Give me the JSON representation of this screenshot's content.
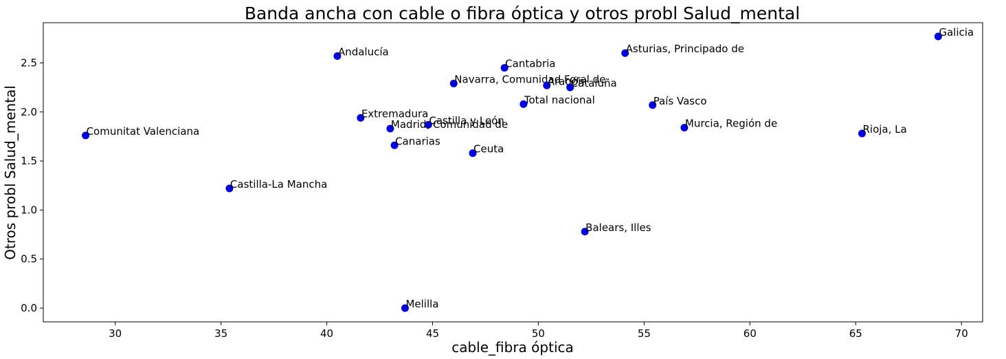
{
  "chart_data": {
    "type": "scatter",
    "title": "Banda ancha con cable o fibra óptica y otros probl Salud_mental",
    "xlabel": "cable_fibra óptica",
    "ylabel": "Otros probl Salud_mental",
    "xlim": [
      26.6,
      71.0
    ],
    "ylim": [
      -0.14,
      2.91
    ],
    "xticks": [
      30,
      35,
      40,
      45,
      50,
      55,
      60,
      65,
      70
    ],
    "yticks": [
      0.0,
      0.5,
      1.0,
      1.5,
      2.0,
      2.5
    ],
    "ytick_labels": [
      "0.0",
      "0.5",
      "1.0",
      "1.5",
      "2.0",
      "2.5"
    ],
    "grid": false,
    "point_color": "#0000dd",
    "points": [
      {
        "label": "Galicia",
        "x": 68.9,
        "y": 2.77
      },
      {
        "label": "Andalucía",
        "x": 40.5,
        "y": 2.57
      },
      {
        "label": "Asturias, Principado de",
        "x": 54.1,
        "y": 2.6
      },
      {
        "label": "Cantabria",
        "x": 48.4,
        "y": 2.45
      },
      {
        "label": "Navarra, Comunidad Foral de",
        "x": 46.0,
        "y": 2.29
      },
      {
        "label": "Aragón",
        "x": 50.4,
        "y": 2.27
      },
      {
        "label": "Cataluña",
        "x": 51.5,
        "y": 2.25
      },
      {
        "label": "Total nacional",
        "x": 49.3,
        "y": 2.08
      },
      {
        "label": "País Vasco",
        "x": 55.4,
        "y": 2.07
      },
      {
        "label": "Extremadura",
        "x": 41.6,
        "y": 1.94
      },
      {
        "label": "Castilla y León",
        "x": 44.8,
        "y": 1.87
      },
      {
        "label": "Madrid, Comunidad de",
        "x": 43.0,
        "y": 1.83
      },
      {
        "label": "Murcia, Región de",
        "x": 56.9,
        "y": 1.84
      },
      {
        "label": "Rioja, La",
        "x": 65.3,
        "y": 1.78
      },
      {
        "label": "Comunitat Valenciana",
        "x": 28.6,
        "y": 1.76
      },
      {
        "label": "Canarias",
        "x": 43.2,
        "y": 1.66
      },
      {
        "label": "Ceuta",
        "x": 46.9,
        "y": 1.58
      },
      {
        "label": "Castilla-La Mancha",
        "x": 35.4,
        "y": 1.22
      },
      {
        "label": "Balears, Illes",
        "x": 52.2,
        "y": 0.78
      },
      {
        "label": "Melilla",
        "x": 43.7,
        "y": 0.0
      }
    ]
  }
}
